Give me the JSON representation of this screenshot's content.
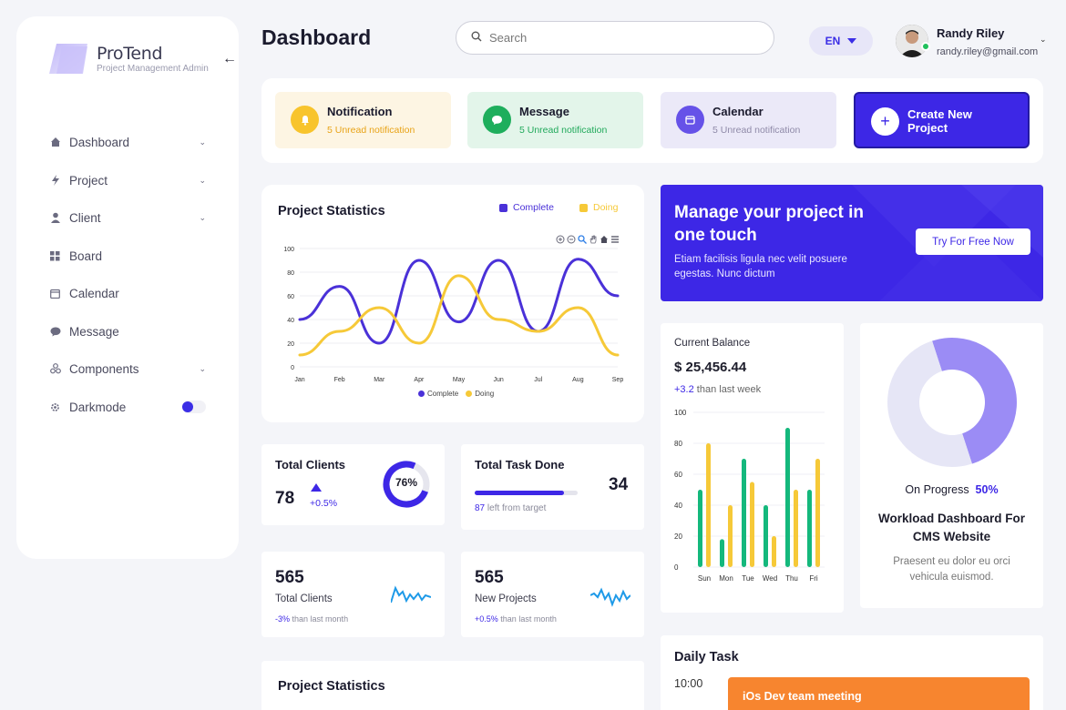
{
  "sidebar": {
    "brand": "ProTend",
    "brand_sub": "Project Management Admin",
    "items": [
      {
        "label": "Dashboard",
        "icon": "home-icon",
        "chevron": true
      },
      {
        "label": "Project",
        "icon": "bolt-icon",
        "chevron": true
      },
      {
        "label": "Client",
        "icon": "user-icon",
        "chevron": true
      },
      {
        "label": "Board",
        "icon": "grid-icon",
        "chevron": false
      },
      {
        "label": "Calendar",
        "icon": "calendar-icon",
        "chevron": false
      },
      {
        "label": "Message",
        "icon": "chat-icon",
        "chevron": false
      },
      {
        "label": "Components",
        "icon": "components-icon",
        "chevron": true
      },
      {
        "label": "Darkmode",
        "icon": "gear-icon",
        "chevron": false
      }
    ]
  },
  "header": {
    "title": "Dashboard",
    "search_placeholder": "Search",
    "language": "EN",
    "user_name": "Randy Riley",
    "user_email": "randy.riley@gmail.com"
  },
  "tiles": [
    {
      "title": "Notification",
      "sub": "5 Unread notification",
      "bg": "#fdf5e3",
      "icon_bg": "#f8c42c",
      "sub_color": "#e8a317"
    },
    {
      "title": "Message",
      "sub": "5 Unread notification",
      "bg": "#e3f5ea",
      "icon_bg": "#1eae5c",
      "sub_color": "#21a95b"
    },
    {
      "title": "Calendar",
      "sub": "5 Unread notification",
      "bg": "#ebe9f8",
      "icon_bg": "#6652e8",
      "sub_color": "#8f8aa8"
    }
  ],
  "create_tile": {
    "title": "Create New Project"
  },
  "chart1": {
    "title": "Project Statistics",
    "legend_complete": "Complete",
    "legend_doing": "Doing",
    "color_complete": "#4a31d8",
    "color_doing": "#f6c938"
  },
  "chart_data": [
    {
      "type": "line",
      "categories": [
        "Jan",
        "Feb",
        "Mar",
        "Apr",
        "May",
        "Jun",
        "Jul",
        "Aug",
        "Sep"
      ],
      "y_ticks": [
        "0",
        "20",
        "40",
        "60",
        "80",
        "100"
      ],
      "ylim": [
        0,
        100
      ],
      "series": [
        {
          "name": "Complete",
          "values": [
            40,
            68,
            20,
            90,
            38,
            90,
            30,
            91,
            60
          ]
        },
        {
          "name": "Doing",
          "values": [
            10,
            30,
            50,
            20,
            77,
            40,
            30,
            50,
            10
          ]
        }
      ]
    },
    {
      "type": "bar",
      "categories": [
        "Sun",
        "Mon",
        "Tue",
        "Wed",
        "Thu",
        "Fri"
      ],
      "y_ticks": [
        "0",
        "20",
        "40",
        "60",
        "80",
        "100"
      ],
      "ylim": [
        0,
        100
      ],
      "series": [
        {
          "values": [
            50,
            18,
            70,
            40,
            90,
            50
          ]
        },
        {
          "values": [
            80,
            40,
            55,
            20,
            50,
            70
          ]
        }
      ],
      "colors": [
        "#14b87c",
        "#f6c938"
      ]
    },
    {
      "type": "pie",
      "values": [
        50,
        50
      ],
      "colors": [
        "#9b8cf5",
        "#e6e6f6"
      ]
    }
  ],
  "promo": {
    "title": "Manage your project in one touch",
    "text": "Etiam facilisis ligula nec velit posuere egestas. Nunc dictum",
    "button": "Try For Free Now"
  },
  "total_clients": {
    "title": "Total Clients",
    "value": "78",
    "change": "+0.5%",
    "percent_label": "76%",
    "percent": 76
  },
  "total_task": {
    "title": "Total Task Done",
    "value": "34",
    "progress": 0.87,
    "left_num": "87",
    "left_label": "left from target"
  },
  "clients_card": {
    "value": "565",
    "label": "Total Clients",
    "change": "-3%",
    "change_label": "than last month"
  },
  "projects_card": {
    "value": "565",
    "label": "New Projects",
    "change": "+0.5%",
    "change_label": "than last month"
  },
  "balance": {
    "title": "Current Balance",
    "value": "$ 25,456.44",
    "change": "+3.2",
    "change_label": "than last week"
  },
  "workload": {
    "status_label": "On Progress",
    "status_value": "50%",
    "title": "Workload Dashboard For CMS Website",
    "text": "Praesent eu dolor eu orci vehicula euismod."
  },
  "daily": {
    "title": "Daily Task",
    "time": "10:00",
    "event": "iOs Dev team meeting"
  },
  "stats2": {
    "title": "Project Statistics"
  }
}
